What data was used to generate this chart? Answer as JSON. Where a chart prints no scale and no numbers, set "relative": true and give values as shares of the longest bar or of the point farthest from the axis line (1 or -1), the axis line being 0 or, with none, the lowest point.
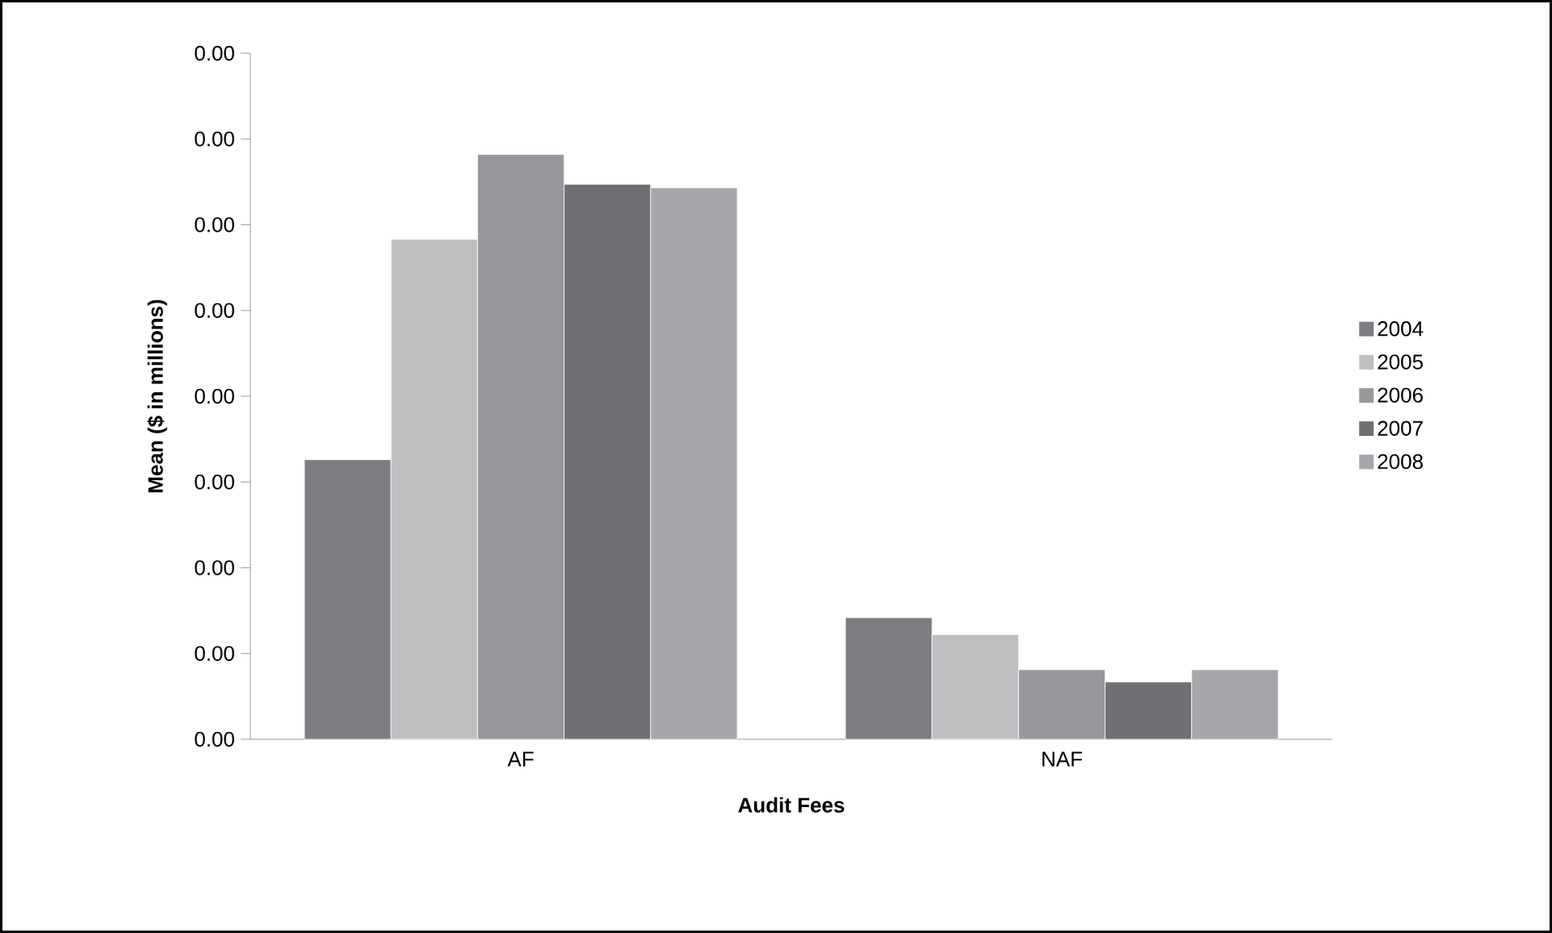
{
  "chart_data": {
    "type": "bar",
    "xlabel": "Audit Fees",
    "ylabel": "Mean ($ in millions)",
    "categories": [
      "AF",
      "NAF"
    ],
    "series": [
      {
        "name": "2004",
        "color": "#7d7e82",
        "values": [
          0.478,
          0.208
        ]
      },
      {
        "name": "2005",
        "color": "#bebfc1",
        "values": [
          0.855,
          0.179
        ]
      },
      {
        "name": "2006",
        "color": "#97989c",
        "values": [
          1,
          0.119
        ]
      },
      {
        "name": "2007",
        "color": "#6f7074",
        "values": [
          0.949,
          0.098
        ]
      },
      {
        "name": "2008",
        "color": "#a6a7aa",
        "values": [
          0.943,
          0.119
        ]
      }
    ],
    "relative": true,
    "annotations": [
      "0.00",
      "0.00",
      "0.00",
      "0.00",
      "0.00",
      "0.00",
      "0.00",
      "0.00",
      "0.00"
    ],
    "legend": "right"
  }
}
